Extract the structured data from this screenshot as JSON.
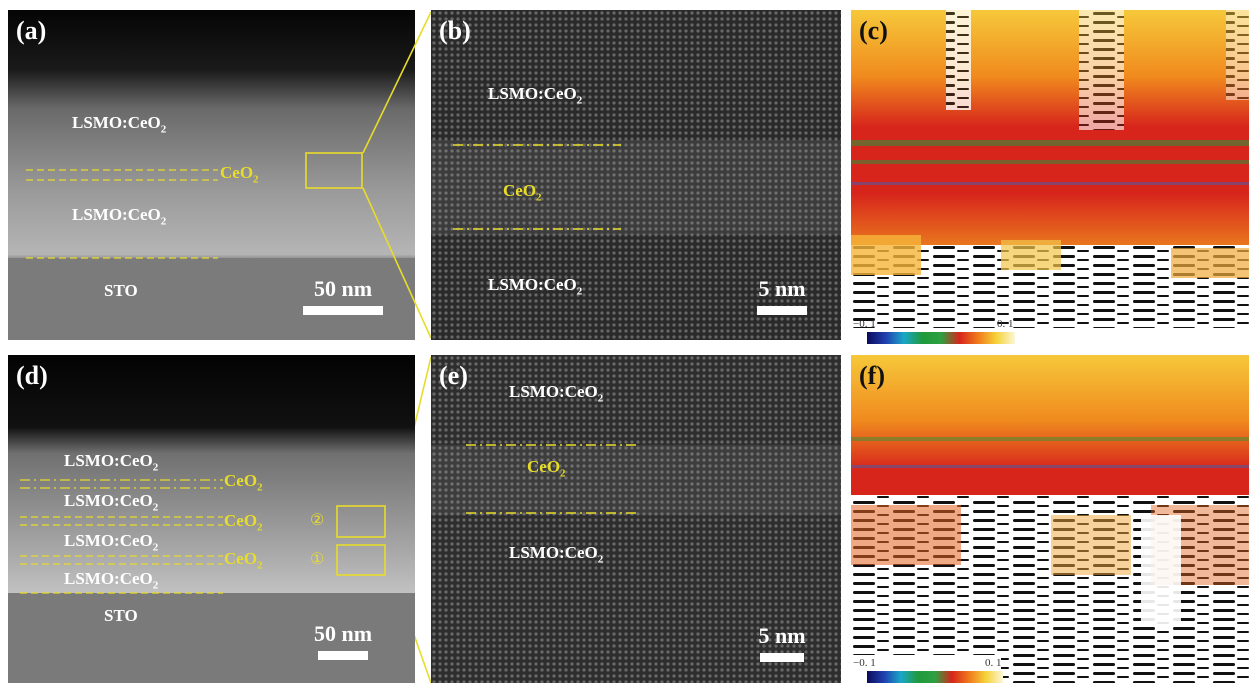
{
  "panels": {
    "a": {
      "label": "(a)",
      "layer_top": "LSMO:CeO",
      "layer_mid": "CeO",
      "layer_bot": "LSMO:CeO",
      "substrate": "STO",
      "scale": "50 nm",
      "sub": "2"
    },
    "b": {
      "label": "(b)",
      "layer_top": "LSMO:CeO",
      "layer_mid": "CeO",
      "layer_bot": "LSMO:CeO",
      "scale": "5 nm",
      "sub": "2"
    },
    "c": {
      "label": "(c)",
      "cb_min": "−0. 1",
      "cb_max": "0. 1"
    },
    "d": {
      "label": "(d)",
      "layers": [
        "LSMO:CeO",
        "LSMO:CeO",
        "LSMO:CeO",
        "LSMO:CeO"
      ],
      "ceo2": [
        "CeO",
        "CeO",
        "CeO"
      ],
      "substrate": "STO",
      "scale": "50 nm",
      "sub": "2",
      "marker1": "①",
      "marker2": "②"
    },
    "e": {
      "label": "(e)",
      "layer_top": "LSMO:CeO",
      "layer_mid": "CeO",
      "layer_bot": "LSMO:CeO",
      "scale": "5 nm",
      "sub": "2"
    },
    "f": {
      "label": "(f)",
      "cb_min": "−0. 1",
      "cb_max": "0. 1"
    }
  },
  "colors": {
    "annotation_yellow": "#e8dc2a",
    "strain_red": "#d7251c",
    "strain_orange": "#f07a1b",
    "strain_green": "#1f9a3c"
  }
}
